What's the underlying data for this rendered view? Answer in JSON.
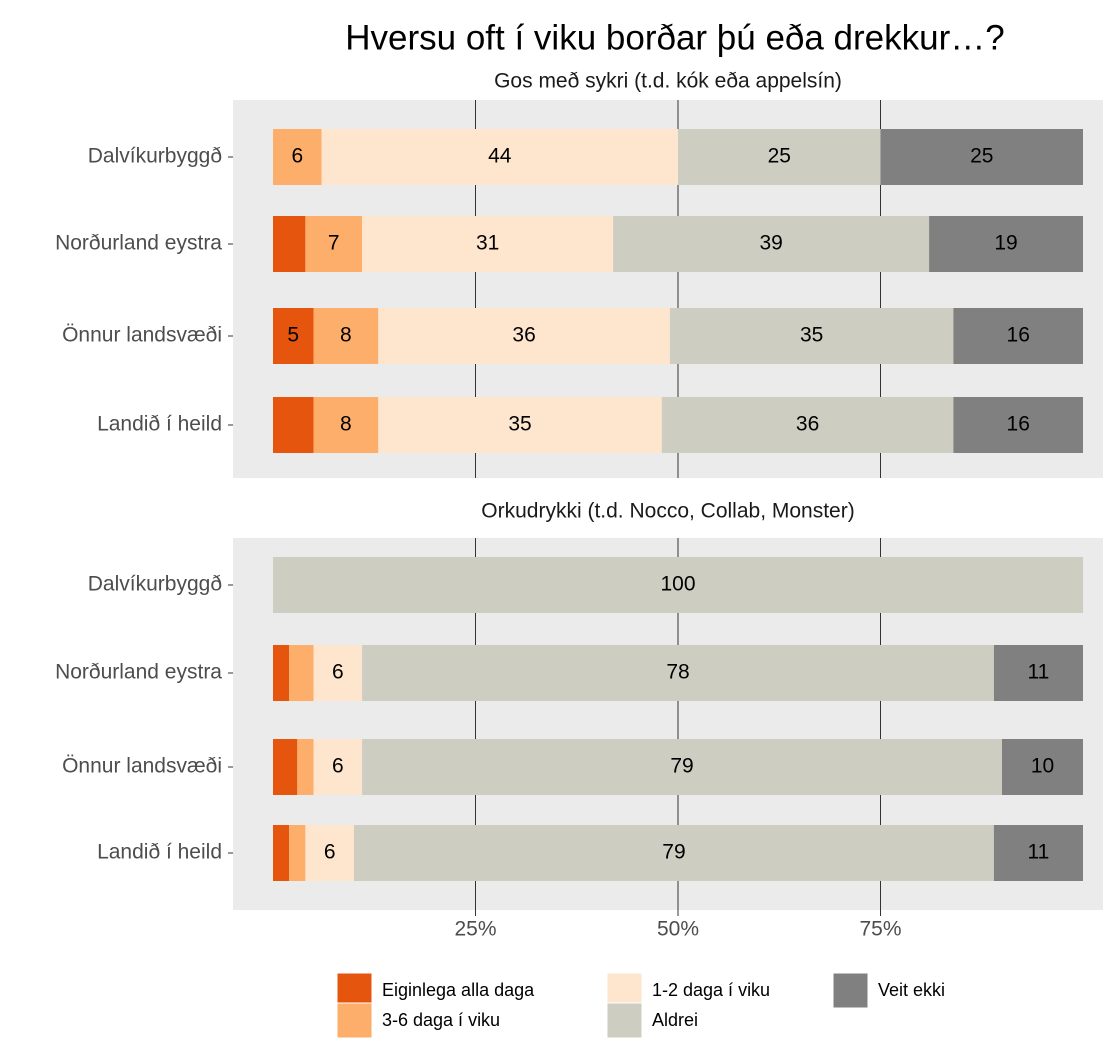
{
  "title": "Hversu oft í viku borðar þú eða drekkur…?",
  "chart_data": [
    {
      "type": "bar",
      "orientation": "horizontal",
      "stacked": true,
      "title": "Gos með sykri (t.d. kók eða appelsín)",
      "categories": [
        "Dalvíkurbyggð",
        "Norðurland eystra",
        "Önnur landsvæði",
        "Landið í heild"
      ],
      "series": [
        {
          "name": "Eiginlega alla daga",
          "color": "#e6550d",
          "values": [
            0,
            4,
            5,
            5
          ],
          "value_labels": [
            null,
            null,
            "5",
            null
          ]
        },
        {
          "name": "3-6 daga í viku",
          "color": "#fdae6b",
          "values": [
            6,
            7,
            8,
            8
          ],
          "value_labels": [
            "6",
            "7",
            "8",
            "8"
          ]
        },
        {
          "name": "1-2 daga í viku",
          "color": "#fee6ce",
          "values": [
            44,
            31,
            36,
            35
          ],
          "value_labels": [
            "44",
            "31",
            "36",
            "35"
          ]
        },
        {
          "name": "Aldrei",
          "color": "#cdcdc1",
          "values": [
            25,
            39,
            35,
            36
          ],
          "value_labels": [
            "25",
            "39",
            "35",
            "36"
          ]
        },
        {
          "name": "Veit ekki",
          "color": "#808080",
          "values": [
            25,
            19,
            16,
            16
          ],
          "value_labels": [
            "25",
            "19",
            "16",
            "16"
          ]
        }
      ],
      "xlim": [
        0,
        100
      ],
      "xticks": [
        {
          "value": 25,
          "label": "25%"
        },
        {
          "value": 50,
          "label": "50%"
        },
        {
          "value": 75,
          "label": "75%"
        }
      ],
      "grid": true
    },
    {
      "type": "bar",
      "orientation": "horizontal",
      "stacked": true,
      "title": "Orkudrykki (t.d. Nocco, Collab, Monster)",
      "categories": [
        "Dalvíkurbyggð",
        "Norðurland eystra",
        "Önnur landsvæði",
        "Landið í heild"
      ],
      "series": [
        {
          "name": "Eiginlega alla daga",
          "color": "#e6550d",
          "values": [
            0,
            2,
            3,
            2
          ],
          "value_labels": [
            null,
            null,
            null,
            null
          ]
        },
        {
          "name": "3-6 daga í viku",
          "color": "#fdae6b",
          "values": [
            0,
            3,
            2,
            2
          ],
          "value_labels": [
            null,
            null,
            null,
            null
          ]
        },
        {
          "name": "1-2 daga í viku",
          "color": "#fee6ce",
          "values": [
            0,
            6,
            6,
            6
          ],
          "value_labels": [
            null,
            "6",
            "6",
            "6"
          ]
        },
        {
          "name": "Aldrei",
          "color": "#cdcdc1",
          "values": [
            100,
            78,
            79,
            79
          ],
          "value_labels": [
            "100",
            "78",
            "79",
            "79"
          ]
        },
        {
          "name": "Veit ekki",
          "color": "#808080",
          "values": [
            0,
            11,
            10,
            11
          ],
          "value_labels": [
            null,
            "11",
            "10",
            "11"
          ]
        }
      ],
      "xlim": [
        0,
        100
      ],
      "xticks": [
        {
          "value": 25,
          "label": "25%"
        },
        {
          "value": 50,
          "label": "50%"
        },
        {
          "value": 75,
          "label": "75%"
        }
      ],
      "grid": true
    }
  ]
}
